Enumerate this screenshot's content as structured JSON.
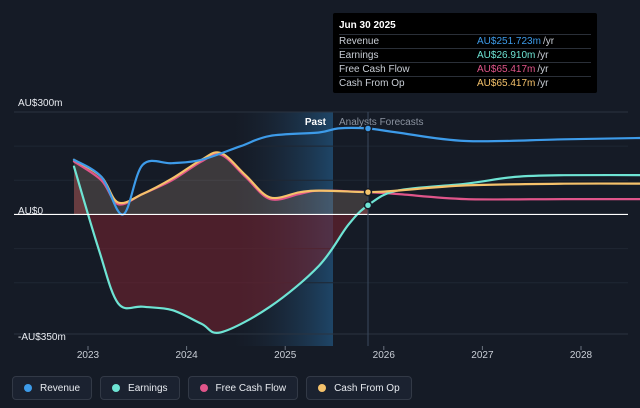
{
  "chart_data": {
    "type": "line",
    "y_labels": [
      "AU$300m",
      "AU$0",
      "-AU$350m"
    ],
    "past_label": "Past",
    "forecast_label": "Analysts Forecasts",
    "x_ticks": [
      "2023",
      "2024",
      "2025",
      "2026",
      "2027",
      "2028"
    ],
    "ylim": [
      -350,
      300
    ],
    "colors": {
      "revenue": "#3d9be9",
      "earnings": "#6ee4d4",
      "free_cash_flow": "#e0558a",
      "cash_from_op": "#f5c26b",
      "divider": "#ffffff"
    },
    "series": [
      {
        "name": "Revenue",
        "key": "revenue",
        "points": [
          [
            2022.5,
            160
          ],
          [
            2022.78,
            110
          ],
          [
            2023.0,
            0
          ],
          [
            2023.2,
            145
          ],
          [
            2023.5,
            150
          ],
          [
            2023.8,
            160
          ],
          [
            2024.2,
            200
          ],
          [
            2024.5,
            230
          ],
          [
            2025.0,
            240
          ],
          [
            2025.2,
            252
          ],
          [
            2025.5,
            251.7
          ],
          [
            2025.8,
            240
          ],
          [
            2026.5,
            215
          ],
          [
            2027.5,
            220
          ],
          [
            2028.5,
            225
          ]
        ]
      },
      {
        "name": "Earnings",
        "key": "earnings",
        "points": [
          [
            2022.5,
            140
          ],
          [
            2022.75,
            -100
          ],
          [
            2022.95,
            -260
          ],
          [
            2023.2,
            -270
          ],
          [
            2023.5,
            -280
          ],
          [
            2023.8,
            -320
          ],
          [
            2024.0,
            -345
          ],
          [
            2024.5,
            -270
          ],
          [
            2025.0,
            -150
          ],
          [
            2025.3,
            -30
          ],
          [
            2025.5,
            26.9
          ],
          [
            2025.8,
            70
          ],
          [
            2026.5,
            90
          ],
          [
            2027.0,
            110
          ],
          [
            2027.5,
            115
          ],
          [
            2028.5,
            115
          ]
        ]
      },
      {
        "name": "Free Cash Flow",
        "key": "free_cash_flow",
        "points": [
          [
            2022.5,
            155
          ],
          [
            2022.78,
            100
          ],
          [
            2022.95,
            30
          ],
          [
            2023.2,
            60
          ],
          [
            2023.5,
            100
          ],
          [
            2023.8,
            155
          ],
          [
            2024.0,
            175
          ],
          [
            2024.25,
            110
          ],
          [
            2024.5,
            45
          ],
          [
            2024.8,
            60
          ],
          [
            2025.0,
            70
          ],
          [
            2025.5,
            65.4
          ],
          [
            2025.8,
            60
          ],
          [
            2026.5,
            45
          ],
          [
            2027.5,
            45
          ],
          [
            2028.5,
            45
          ]
        ]
      },
      {
        "name": "Cash From Op",
        "key": "cash_from_op",
        "points": [
          [
            2022.5,
            160
          ],
          [
            2022.78,
            110
          ],
          [
            2022.95,
            35
          ],
          [
            2023.2,
            60
          ],
          [
            2023.5,
            105
          ],
          [
            2023.8,
            160
          ],
          [
            2024.0,
            180
          ],
          [
            2024.25,
            115
          ],
          [
            2024.5,
            50
          ],
          [
            2024.8,
            65
          ],
          [
            2025.0,
            70
          ],
          [
            2025.5,
            65.4
          ],
          [
            2025.8,
            70
          ],
          [
            2026.5,
            85
          ],
          [
            2027.5,
            90
          ],
          [
            2028.5,
            90
          ]
        ]
      }
    ]
  },
  "tooltip": {
    "date": "Jun 30 2025",
    "rows": [
      {
        "label": "Revenue",
        "value": "AU$251.723m",
        "unit": "/yr",
        "color": "#3d9be9"
      },
      {
        "label": "Earnings",
        "value": "AU$26.910m",
        "unit": "/yr",
        "color": "#6ee4d4"
      },
      {
        "label": "Free Cash Flow",
        "value": "AU$65.417m",
        "unit": "/yr",
        "color": "#e0558a"
      },
      {
        "label": "Cash From Op",
        "value": "AU$65.417m",
        "unit": "/yr",
        "color": "#f5c26b"
      }
    ]
  },
  "legend": [
    {
      "label": "Revenue",
      "color": "#3d9be9"
    },
    {
      "label": "Earnings",
      "color": "#6ee4d4"
    },
    {
      "label": "Free Cash Flow",
      "color": "#e0558a"
    },
    {
      "label": "Cash From Op",
      "color": "#f5c26b"
    }
  ]
}
